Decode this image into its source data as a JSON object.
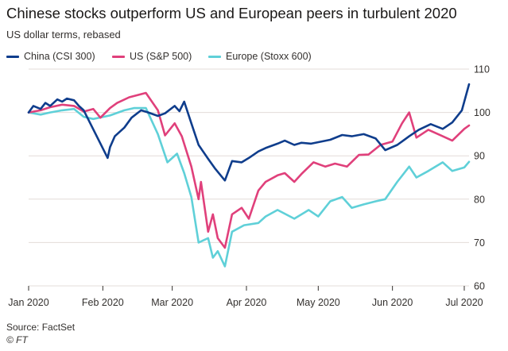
{
  "title": "Chinese stocks outperform US and European peers in turbulent 2020",
  "subtitle": "US dollar terms, rebased",
  "source": "Source: FactSet",
  "credit": "© FT",
  "colors": {
    "china": "#0f3d8c",
    "us": "#e0407b",
    "europe": "#5fd0d8",
    "grid": "#e3dcd8",
    "axis": "#33302e"
  },
  "chart_data": {
    "type": "line",
    "title": "Chinese stocks outperform US and European peers in turbulent 2020",
    "subtitle": "US dollar terms, rebased",
    "x_ticks": [
      "Jan 2020",
      "Feb 2020",
      "Mar 2020",
      "Apr 2020",
      "May 2020",
      "Jun 2020",
      "Jul 2020"
    ],
    "x_range": [
      "2020-01-01",
      "2020-07-03"
    ],
    "ylim": [
      60,
      110
    ],
    "y_ticks": [
      60,
      70,
      80,
      90,
      100,
      110
    ],
    "y_axis_side": "right",
    "grid": true,
    "legend_position": "top-left",
    "series": [
      {
        "name": "China (CSI 300)",
        "color": "#0f3d8c",
        "x": [
          "2020-01-01",
          "2020-01-03",
          "2020-01-06",
          "2020-01-08",
          "2020-01-10",
          "2020-01-13",
          "2020-01-15",
          "2020-01-17",
          "2020-01-20",
          "2020-01-22",
          "2020-01-24",
          "2020-02-03",
          "2020-02-04",
          "2020-02-06",
          "2020-02-10",
          "2020-02-13",
          "2020-02-17",
          "2020-02-20",
          "2020-02-24",
          "2020-02-27",
          "2020-03-02",
          "2020-03-04",
          "2020-03-06",
          "2020-03-09",
          "2020-03-12",
          "2020-03-16",
          "2020-03-19",
          "2020-03-23",
          "2020-03-26",
          "2020-03-30",
          "2020-04-02",
          "2020-04-06",
          "2020-04-09",
          "2020-04-14",
          "2020-04-17",
          "2020-04-21",
          "2020-04-24",
          "2020-04-28",
          "2020-05-06",
          "2020-05-11",
          "2020-05-15",
          "2020-05-20",
          "2020-05-25",
          "2020-05-29",
          "2020-06-03",
          "2020-06-08",
          "2020-06-12",
          "2020-06-17",
          "2020-06-22",
          "2020-06-26",
          "2020-06-30",
          "2020-07-03"
        ],
        "values": [
          100,
          101.5,
          100.8,
          102.2,
          101.5,
          103,
          102.5,
          103.2,
          102.8,
          101.5,
          100.5,
          89.5,
          92,
          94.5,
          96.5,
          98.8,
          100.5,
          100,
          99.2,
          99.8,
          101.5,
          100.3,
          102.5,
          97.5,
          92.5,
          89.3,
          87,
          84.3,
          88.8,
          88.5,
          89.5,
          91,
          91.8,
          92.8,
          93.5,
          92.5,
          93,
          92.8,
          93.7,
          94.8,
          94.5,
          95,
          94,
          91.3,
          92.5,
          94.5,
          96,
          97.3,
          96.2,
          97.7,
          100.5,
          106.5
        ]
      },
      {
        "name": "US (S&P 500)",
        "color": "#e0407b",
        "x": [
          "2020-01-01",
          "2020-01-06",
          "2020-01-10",
          "2020-01-15",
          "2020-01-20",
          "2020-01-24",
          "2020-01-28",
          "2020-01-31",
          "2020-02-04",
          "2020-02-07",
          "2020-02-12",
          "2020-02-19",
          "2020-02-24",
          "2020-02-27",
          "2020-03-02",
          "2020-03-05",
          "2020-03-09",
          "2020-03-12",
          "2020-03-13",
          "2020-03-16",
          "2020-03-18",
          "2020-03-20",
          "2020-03-23",
          "2020-03-26",
          "2020-03-30",
          "2020-04-02",
          "2020-04-06",
          "2020-04-09",
          "2020-04-14",
          "2020-04-17",
          "2020-04-21",
          "2020-04-24",
          "2020-04-29",
          "2020-05-04",
          "2020-05-08",
          "2020-05-13",
          "2020-05-18",
          "2020-05-22",
          "2020-05-27",
          "2020-06-01",
          "2020-06-05",
          "2020-06-08",
          "2020-06-11",
          "2020-06-16",
          "2020-06-22",
          "2020-06-26",
          "2020-07-01",
          "2020-07-03"
        ],
        "values": [
          100,
          100.5,
          101.2,
          101.8,
          101.5,
          100.2,
          100.8,
          98.8,
          101,
          102.2,
          103.5,
          104.5,
          100.5,
          94.7,
          97.5,
          94.5,
          87.5,
          80,
          84,
          72.5,
          76.5,
          71,
          68.8,
          76.5,
          78,
          75.5,
          82,
          84,
          85.5,
          86,
          84,
          85.8,
          88.5,
          87.5,
          88.2,
          87.5,
          90.2,
          90.3,
          92.5,
          93.3,
          97.5,
          100,
          94.2,
          96,
          94.5,
          93.5,
          96.2,
          97
        ]
      },
      {
        "name": "Europe (Stoxx 600)",
        "color": "#5fd0d8",
        "x": [
          "2020-01-01",
          "2020-01-06",
          "2020-01-10",
          "2020-01-15",
          "2020-01-20",
          "2020-01-24",
          "2020-01-28",
          "2020-02-04",
          "2020-02-10",
          "2020-02-14",
          "2020-02-19",
          "2020-02-24",
          "2020-02-28",
          "2020-03-03",
          "2020-03-06",
          "2020-03-09",
          "2020-03-12",
          "2020-03-16",
          "2020-03-18",
          "2020-03-20",
          "2020-03-23",
          "2020-03-26",
          "2020-03-31",
          "2020-04-06",
          "2020-04-09",
          "2020-04-14",
          "2020-04-21",
          "2020-04-27",
          "2020-05-01",
          "2020-05-06",
          "2020-05-11",
          "2020-05-15",
          "2020-05-20",
          "2020-05-25",
          "2020-05-29",
          "2020-06-03",
          "2020-06-08",
          "2020-06-11",
          "2020-06-16",
          "2020-06-22",
          "2020-06-26",
          "2020-07-01",
          "2020-07-03"
        ],
        "values": [
          100,
          99.5,
          100,
          100.5,
          100.8,
          99,
          98.5,
          99.3,
          100.5,
          101,
          101,
          95,
          88.5,
          90.5,
          86,
          80.5,
          70,
          71,
          66.5,
          68,
          64.5,
          72.5,
          74,
          74.5,
          76,
          77.5,
          75.5,
          77.5,
          76,
          79.5,
          80.5,
          78,
          78.8,
          79.5,
          80,
          84,
          87.5,
          85,
          86.5,
          88.5,
          86.5,
          87.3,
          88.6
        ]
      }
    ]
  }
}
